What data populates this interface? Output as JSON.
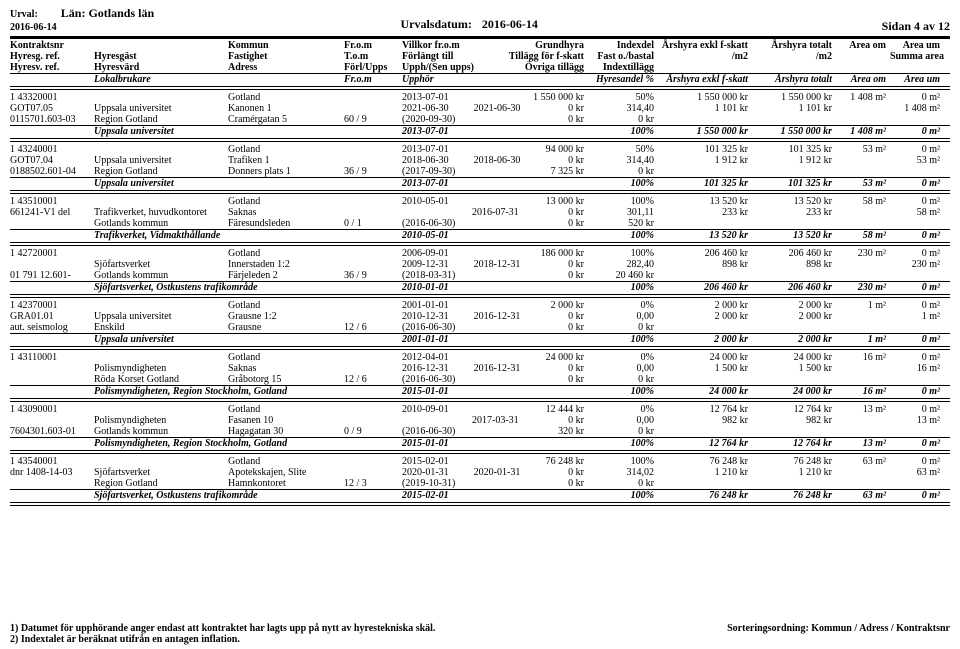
{
  "header": {
    "urval_label": "Urval:",
    "lan_label": "Län: Gotlands län",
    "date_left": "2016-06-14",
    "urvalsdatum_label": "Urvalsdatum:",
    "urvalsdatum_value": "2016-06-14",
    "page_label": "Sidan 4 av 12"
  },
  "colhdr": {
    "r1": [
      "Kontraktsnr",
      "",
      "Kommun",
      "Fr.o.m",
      "Villkor fr.o.m",
      "Grundhyra",
      "Indexdel",
      "Årshyra exkl f-skatt",
      "Årshyra totalt",
      "Area om",
      "Area um"
    ],
    "r2": [
      "Hyresg. ref.",
      "Hyresgäst",
      "Fastighet",
      "T.o.m",
      "Förlängt till",
      "Tillägg för f-skatt",
      "Fast o./bastal",
      "/m2",
      "/m2",
      "",
      "Summa area"
    ],
    "r3": [
      "Hyresv. ref.",
      "Hyresvärd",
      "Adress",
      "Förl/Upps",
      "Upph/(Sen upps)",
      "Övriga tillägg",
      "Indextillägg",
      "",
      "",
      "",
      ""
    ],
    "r4": [
      "",
      "Lokalbrukare",
      "",
      "Fr.o.m",
      "Upphör",
      "",
      "Hyresandel %",
      "Årshyra exkl f-skatt",
      "Årshyra totalt",
      "Area om",
      "Area um"
    ]
  },
  "groups": [
    {
      "rows": [
        [
          "1 43320001",
          "",
          "Gotland",
          "",
          "2013-07-01",
          "1 550 000 kr",
          "50%",
          "1 550 000 kr",
          "1 550 000 kr",
          "1 408 m²",
          "0 m²"
        ],
        [
          "GOT07.05",
          "Uppsala universitet",
          "Kanonen 1",
          "",
          "2021-06-30          2021-06-30",
          "0 kr",
          "314,40",
          "1 101 kr",
          "1 101 kr",
          "",
          "1 408 m²"
        ],
        [
          "0115701.603-03",
          "Region Gotland",
          "Cramérgatan 5",
          "60 / 9",
          "(2020-09-30)",
          "0 kr",
          "0 kr",
          "",
          "",
          "",
          ""
        ]
      ],
      "sum": [
        "",
        "Uppsala universitet",
        "",
        "",
        "2013-07-01",
        "",
        "100%",
        "1 550 000 kr",
        "1 550 000 kr",
        "1 408 m²",
        "0 m²"
      ]
    },
    {
      "rows": [
        [
          "1 43240001",
          "",
          "Gotland",
          "",
          "2013-07-01",
          "94 000 kr",
          "50%",
          "101 325 kr",
          "101 325 kr",
          "53 m²",
          "0 m²"
        ],
        [
          "GOT07.04",
          "Uppsala universitet",
          "Trafiken 1",
          "",
          "2018-06-30          2018-06-30",
          "0 kr",
          "314,40",
          "1 912 kr",
          "1 912 kr",
          "",
          "53 m²"
        ],
        [
          "0188502.601-04",
          "Region Gotland",
          "Donners plats 1",
          "36 / 9",
          "(2017-09-30)",
          "7 325 kr",
          "0 kr",
          "",
          "",
          "",
          ""
        ]
      ],
      "sum": [
        "",
        "Uppsala universitet",
        "",
        "",
        "2013-07-01",
        "",
        "100%",
        "101 325 kr",
        "101 325 kr",
        "53 m²",
        "0 m²"
      ]
    },
    {
      "rows": [
        [
          "1 43510001",
          "",
          "Gotland",
          "",
          "2010-05-01",
          "13 000 kr",
          "100%",
          "13 520 kr",
          "13 520 kr",
          "58 m²",
          "0 m²"
        ],
        [
          "661241-V1  del",
          "Trafikverket, huvudkontoret",
          "Saknas",
          "",
          "                            2016-07-31",
          "0 kr",
          "301,11",
          "233 kr",
          "233 kr",
          "",
          "58 m²"
        ],
        [
          "",
          "Gotlands kommun",
          "Färesundsleden",
          "0 / 1",
          "(2016-06-30)",
          "0 kr",
          "520 kr",
          "",
          "",
          "",
          ""
        ]
      ],
      "sum": [
        "",
        "Trafikverket, Vidmakthållande",
        "",
        "",
        "2010-05-01",
        "",
        "100%",
        "13 520 kr",
        "13 520 kr",
        "58 m²",
        "0 m²"
      ]
    },
    {
      "rows": [
        [
          "1 42720001",
          "",
          "Gotland",
          "",
          "2006-09-01",
          "186 000 kr",
          "100%",
          "206 460 kr",
          "206 460 kr",
          "230 m²",
          "0 m²"
        ],
        [
          "",
          "Sjöfartsverket",
          "Innerstaden 1:2",
          "",
          "2009-12-31          2018-12-31",
          "0 kr",
          "282,40",
          "898 kr",
          "898 kr",
          "",
          "230 m²"
        ],
        [
          "01 791 12.601-",
          "Gotlands kommun",
          "Färjeleden 2",
          "36 / 9",
          "(2018-03-31)",
          "0 kr",
          "20 460 kr",
          "",
          "",
          "",
          ""
        ]
      ],
      "sum": [
        "",
        "Sjöfartsverket, Ostkustens trafikområde",
        "",
        "",
        "2010-01-01",
        "",
        "100%",
        "206 460 kr",
        "206 460 kr",
        "230 m²",
        "0 m²"
      ]
    },
    {
      "rows": [
        [
          "1 42370001",
          "",
          "Gotland",
          "",
          "2001-01-01",
          "2 000 kr",
          "0%",
          "2 000 kr",
          "2 000 kr",
          "1 m²",
          "0 m²"
        ],
        [
          "GRA01.01",
          "Uppsala universitet",
          "Grausne 1:2",
          "",
          "2010-12-31          2016-12-31",
          "0 kr",
          "0,00",
          "2 000 kr",
          "2 000 kr",
          "",
          "1 m²"
        ],
        [
          "aut. seismolog",
          "Enskild",
          "Grausne",
          "12 / 6",
          "(2016-06-30)",
          "0 kr",
          "0 kr",
          "",
          "",
          "",
          ""
        ]
      ],
      "sum": [
        "",
        "Uppsala universitet",
        "",
        "",
        "2001-01-01",
        "",
        "100%",
        "2 000 kr",
        "2 000 kr",
        "1 m²",
        "0 m²"
      ]
    },
    {
      "rows": [
        [
          "1 43110001",
          "",
          "Gotland",
          "",
          "2012-04-01",
          "24 000 kr",
          "0%",
          "24 000 kr",
          "24 000 kr",
          "16 m²",
          "0 m²"
        ],
        [
          "",
          "Polismyndigheten",
          "Saknas",
          "",
          "2016-12-31          2016-12-31",
          "0 kr",
          "0,00",
          "1 500 kr",
          "1 500 kr",
          "",
          "16 m²"
        ],
        [
          "",
          "Röda Korset Gotland",
          "Gråbotorg 15",
          "12 / 6",
          "(2016-06-30)",
          "0 kr",
          "0 kr",
          "",
          "",
          "",
          ""
        ]
      ],
      "sum": [
        "",
        "Polismyndigheten, Region Stockholm, Gotland",
        "",
        "",
        "2015-01-01",
        "",
        "100%",
        "24 000 kr",
        "24 000 kr",
        "16 m²",
        "0 m²"
      ]
    },
    {
      "rows": [
        [
          "1 43090001",
          "",
          "Gotland",
          "",
          "2010-09-01",
          "12 444 kr",
          "0%",
          "12 764 kr",
          "12 764 kr",
          "13 m²",
          "0 m²"
        ],
        [
          "",
          "Polismyndigheten",
          "Fasanen 10",
          "",
          "                            2017-03-31",
          "0 kr",
          "0,00",
          "982 kr",
          "982 kr",
          "",
          "13 m²"
        ],
        [
          "7604301.603-01",
          "Gotlands kommun",
          "Hagagatan 30",
          "0 / 9",
          "(2016-06-30)",
          "320 kr",
          "0 kr",
          "",
          "",
          "",
          ""
        ]
      ],
      "sum": [
        "",
        "Polismyndigheten, Region Stockholm, Gotland",
        "",
        "",
        "2015-01-01",
        "",
        "100%",
        "12 764 kr",
        "12 764 kr",
        "13 m²",
        "0 m²"
      ]
    },
    {
      "rows": [
        [
          "1 43540001",
          "",
          "Gotland",
          "",
          "2015-02-01",
          "76 248 kr",
          "100%",
          "76 248 kr",
          "76 248 kr",
          "63 m²",
          "0 m²"
        ],
        [
          "dnr 1408-14-03",
          "Sjöfartsverket",
          "Apotekskajen, Slite",
          "",
          "2020-01-31          2020-01-31",
          "0 kr",
          "314,02",
          "1 210 kr",
          "1 210 kr",
          "",
          "63 m²"
        ],
        [
          "",
          "Region Gotland",
          "Hamnkontoret",
          "12 / 3",
          "(2019-10-31)",
          "0 kr",
          "0 kr",
          "",
          "",
          "",
          ""
        ]
      ],
      "sum": [
        "",
        "Sjöfartsverket, Ostkustens trafikområde",
        "",
        "",
        "2015-02-01",
        "",
        "100%",
        "76 248 kr",
        "76 248 kr",
        "63 m²",
        "0 m²"
      ]
    }
  ],
  "footer": {
    "note1": "1) Datumet för upphörande anger endast att kontraktet har lagts upp på nytt av hyrestekniska skäl.",
    "note2": "2) Indextalet är beräknat utifrån en antagen inflation.",
    "sort": "Sorteringsordning: Kommun / Adress / Kontraktsnr"
  }
}
